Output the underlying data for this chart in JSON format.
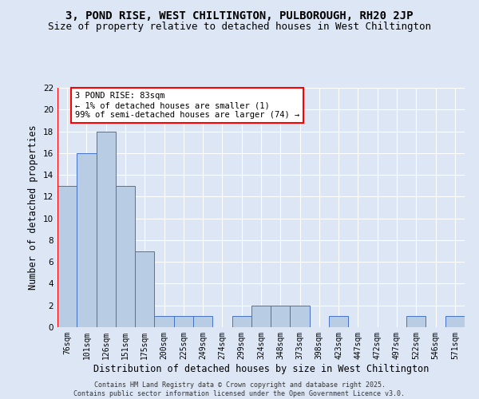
{
  "title1": "3, POND RISE, WEST CHILTINGTON, PULBOROUGH, RH20 2JP",
  "title2": "Size of property relative to detached houses in West Chiltington",
  "xlabel": "Distribution of detached houses by size in West Chiltington",
  "ylabel": "Number of detached properties",
  "categories": [
    "76sqm",
    "101sqm",
    "126sqm",
    "151sqm",
    "175sqm",
    "200sqm",
    "225sqm",
    "249sqm",
    "274sqm",
    "299sqm",
    "324sqm",
    "348sqm",
    "373sqm",
    "398sqm",
    "423sqm",
    "447sqm",
    "472sqm",
    "497sqm",
    "522sqm",
    "546sqm",
    "571sqm"
  ],
  "values": [
    13,
    16,
    18,
    13,
    7,
    1,
    1,
    1,
    0,
    1,
    2,
    2,
    2,
    0,
    1,
    0,
    0,
    0,
    1,
    0,
    1
  ],
  "bar_color": "#b8cce4",
  "bar_edge_color": "#4472c4",
  "annotation_text": "3 POND RISE: 83sqm\n← 1% of detached houses are smaller (1)\n99% of semi-detached houses are larger (74) →",
  "annotation_box_color": "white",
  "annotation_box_edge_color": "red",
  "vline_color": "red",
  "ylim": [
    0,
    22
  ],
  "yticks": [
    0,
    2,
    4,
    6,
    8,
    10,
    12,
    14,
    16,
    18,
    20,
    22
  ],
  "copyright_text": "Contains HM Land Registry data © Crown copyright and database right 2025.\nContains public sector information licensed under the Open Government Licence v3.0.",
  "bg_color": "#dce6f5",
  "plot_bg_color": "#dce6f5",
  "grid_color": "#ffffff",
  "title_fontsize": 10,
  "subtitle_fontsize": 9,
  "tick_fontsize": 7,
  "ylabel_fontsize": 8.5,
  "xlabel_fontsize": 8.5,
  "annot_fontsize": 7.5,
  "copyright_fontsize": 6
}
